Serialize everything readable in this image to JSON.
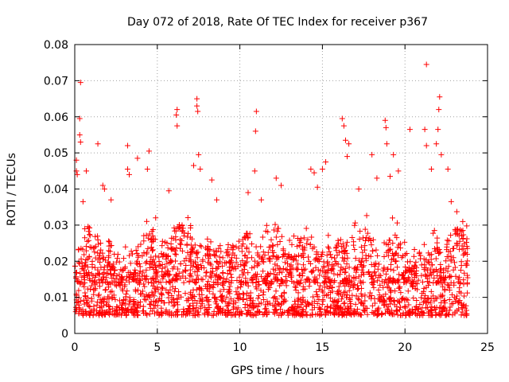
{
  "chart_data": {
    "type": "scatter",
    "title": "Day 072 of 2018, Rate Of TEC Index for receiver p367",
    "xlabel": "GPS time / hours",
    "ylabel": "ROTI / TECUs",
    "xlim": [
      0,
      25
    ],
    "ylim": [
      0,
      0.08
    ],
    "x_ticks": [
      "0",
      "5",
      "10",
      "15",
      "20",
      "25"
    ],
    "y_ticks": [
      "0",
      "0.01",
      "0.02",
      "0.03",
      "0.04",
      "0.05",
      "0.06",
      "0.07",
      "0.08"
    ],
    "grid": true,
    "marker": "+",
    "color": "#ff0000",
    "data_extent_x": [
      0,
      23.8
    ],
    "typical_range_y": [
      0.005,
      0.02
    ],
    "series": [
      {
        "name": "ROTI",
        "points": [
          [
            0.1,
            0.048
          ],
          [
            0.1,
            0.045
          ],
          [
            0.15,
            0.044
          ],
          [
            0.35,
            0.0695
          ],
          [
            0.3,
            0.0595
          ],
          [
            0.3,
            0.055
          ],
          [
            0.35,
            0.053
          ],
          [
            0.5,
            0.0365
          ],
          [
            0.7,
            0.045
          ],
          [
            1.4,
            0.0525
          ],
          [
            1.7,
            0.041
          ],
          [
            1.8,
            0.04
          ],
          [
            2.2,
            0.037
          ],
          [
            3.2,
            0.052
          ],
          [
            3.2,
            0.0455
          ],
          [
            3.3,
            0.044
          ],
          [
            3.8,
            0.0485
          ],
          [
            4.5,
            0.0505
          ],
          [
            4.4,
            0.0455
          ],
          [
            4.9,
            0.032
          ],
          [
            5.7,
            0.0395
          ],
          [
            6.2,
            0.062
          ],
          [
            6.15,
            0.0605
          ],
          [
            6.2,
            0.0575
          ],
          [
            6.5,
            0.03
          ],
          [
            7.2,
            0.0465
          ],
          [
            7.4,
            0.065
          ],
          [
            7.4,
            0.063
          ],
          [
            7.45,
            0.0615
          ],
          [
            7.5,
            0.0495
          ],
          [
            7.6,
            0.0455
          ],
          [
            8.3,
            0.0425
          ],
          [
            8.6,
            0.037
          ],
          [
            10.5,
            0.039
          ],
          [
            11.0,
            0.0615
          ],
          [
            10.95,
            0.056
          ],
          [
            10.9,
            0.045
          ],
          [
            11.3,
            0.037
          ],
          [
            12.2,
            0.043
          ],
          [
            12.5,
            0.041
          ],
          [
            14.3,
            0.0455
          ],
          [
            14.5,
            0.0445
          ],
          [
            14.7,
            0.0405
          ],
          [
            15.0,
            0.0455
          ],
          [
            15.2,
            0.0475
          ],
          [
            16.2,
            0.0595
          ],
          [
            16.3,
            0.0575
          ],
          [
            16.4,
            0.0535
          ],
          [
            16.6,
            0.0525
          ],
          [
            16.5,
            0.049
          ],
          [
            17.2,
            0.04
          ],
          [
            18.0,
            0.0495
          ],
          [
            18.3,
            0.043
          ],
          [
            18.8,
            0.059
          ],
          [
            18.85,
            0.057
          ],
          [
            18.9,
            0.0525
          ],
          [
            19.1,
            0.0435
          ],
          [
            19.3,
            0.0495
          ],
          [
            19.6,
            0.045
          ],
          [
            20.3,
            0.0565
          ],
          [
            21.3,
            0.0745
          ],
          [
            21.2,
            0.0565
          ],
          [
            21.3,
            0.052
          ],
          [
            21.6,
            0.0455
          ],
          [
            21.9,
            0.0525
          ],
          [
            22.1,
            0.0655
          ],
          [
            22.05,
            0.062
          ],
          [
            22.0,
            0.0565
          ],
          [
            22.2,
            0.0495
          ],
          [
            22.6,
            0.0455
          ],
          [
            22.8,
            0.0365
          ],
          [
            23.5,
            0.031
          ]
        ]
      }
    ]
  }
}
